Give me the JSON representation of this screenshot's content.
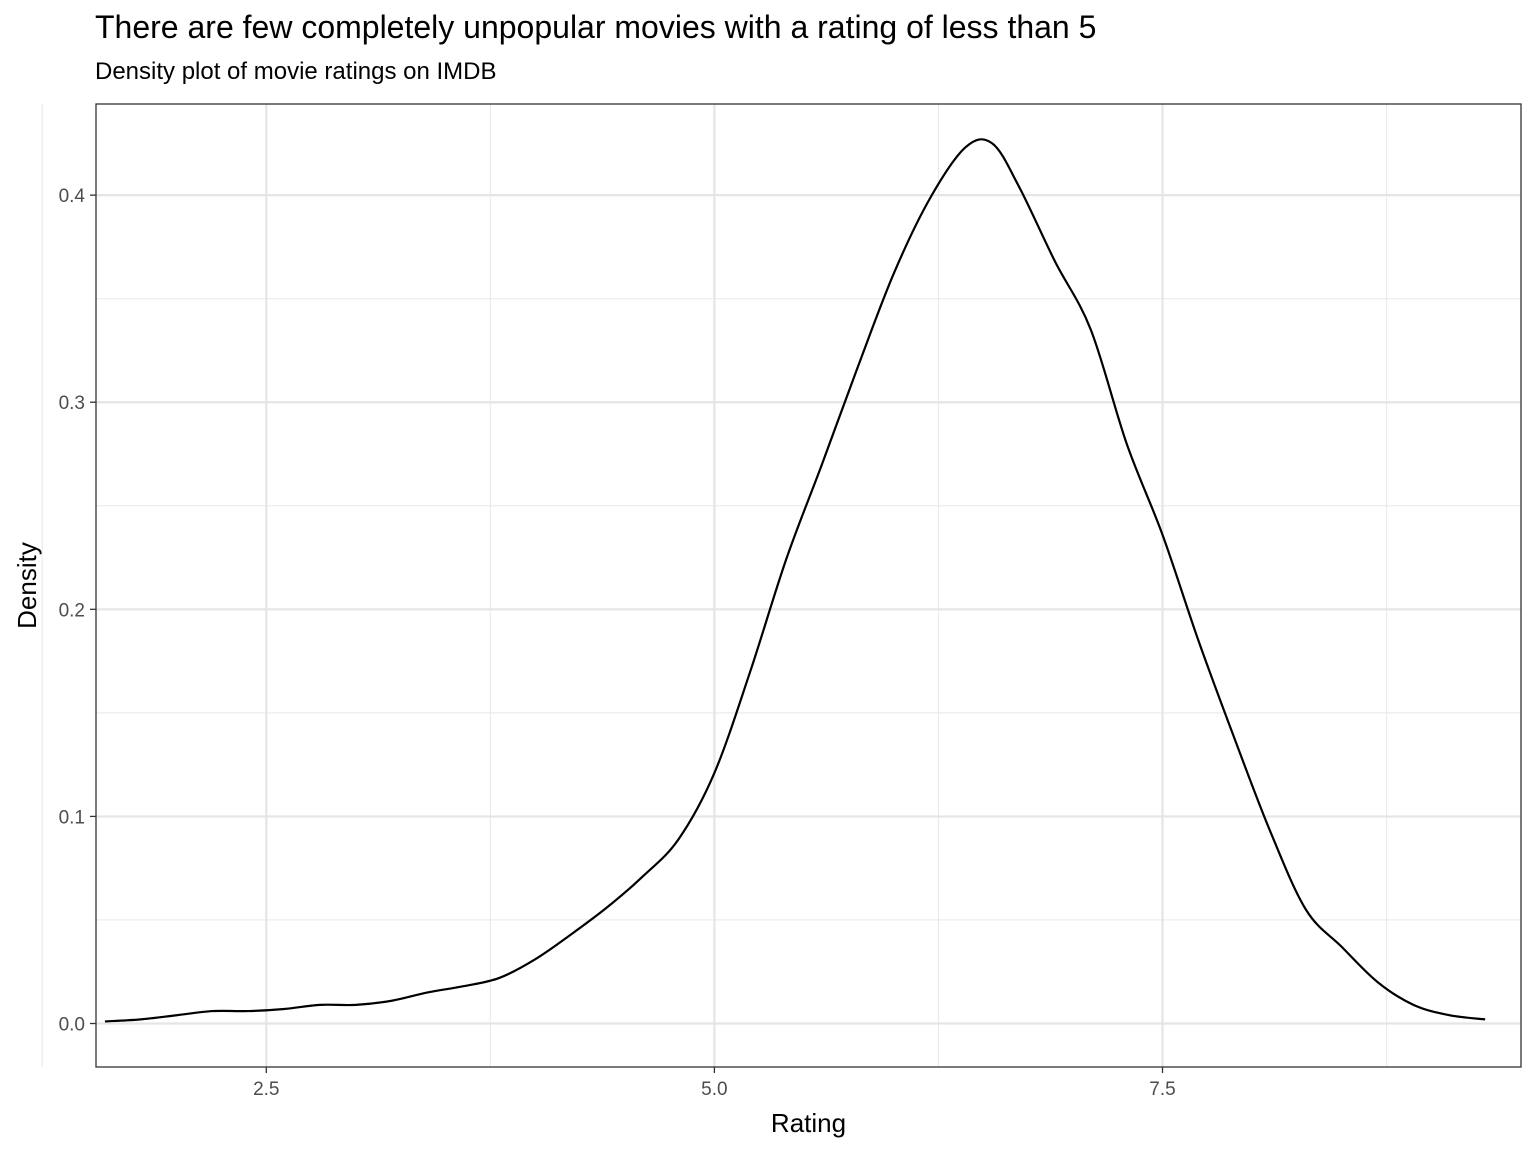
{
  "chart_data": {
    "type": "line",
    "title": "There are few completely unpopular movies with a rating of less than 5",
    "subtitle": "Density plot of movie ratings on IMDB",
    "xlabel": "Rating",
    "ylabel": "Density",
    "xlim": [
      1.55,
      9.5
    ],
    "ylim": [
      -0.021,
      0.444
    ],
    "x_ticks": [
      {
        "value": 2.5,
        "label": "2.5"
      },
      {
        "value": 5.0,
        "label": "5.0"
      },
      {
        "value": 7.5,
        "label": "7.5"
      }
    ],
    "y_ticks": [
      {
        "value": 0.0,
        "label": "0.0"
      },
      {
        "value": 0.1,
        "label": "0.1"
      },
      {
        "value": 0.2,
        "label": "0.2"
      },
      {
        "value": 0.3,
        "label": "0.3"
      },
      {
        "value": 0.4,
        "label": "0.4"
      }
    ],
    "x_minor": [
      1.25,
      3.75,
      6.25,
      8.75
    ],
    "y_minor": [
      0.05,
      0.15,
      0.25,
      0.35
    ],
    "grid": true,
    "series": [
      {
        "color": "#000000",
        "x": [
          1.6,
          1.8,
          2.0,
          2.2,
          2.4,
          2.6,
          2.8,
          3.0,
          3.2,
          3.4,
          3.6,
          3.8,
          4.0,
          4.2,
          4.4,
          4.6,
          4.8,
          5.0,
          5.2,
          5.4,
          5.6,
          5.8,
          6.0,
          6.2,
          6.4,
          6.55,
          6.7,
          6.9,
          7.1,
          7.3,
          7.5,
          7.7,
          7.9,
          8.1,
          8.3,
          8.5,
          8.7,
          8.9,
          9.1,
          9.3
        ],
        "y": [
          0.001,
          0.002,
          0.004,
          0.006,
          0.006,
          0.007,
          0.009,
          0.009,
          0.011,
          0.015,
          0.018,
          0.022,
          0.031,
          0.043,
          0.056,
          0.071,
          0.089,
          0.121,
          0.17,
          0.224,
          0.27,
          0.317,
          0.362,
          0.398,
          0.423,
          0.425,
          0.404,
          0.368,
          0.335,
          0.28,
          0.236,
          0.185,
          0.138,
          0.093,
          0.055,
          0.037,
          0.02,
          0.009,
          0.004,
          0.002
        ]
      }
    ]
  }
}
